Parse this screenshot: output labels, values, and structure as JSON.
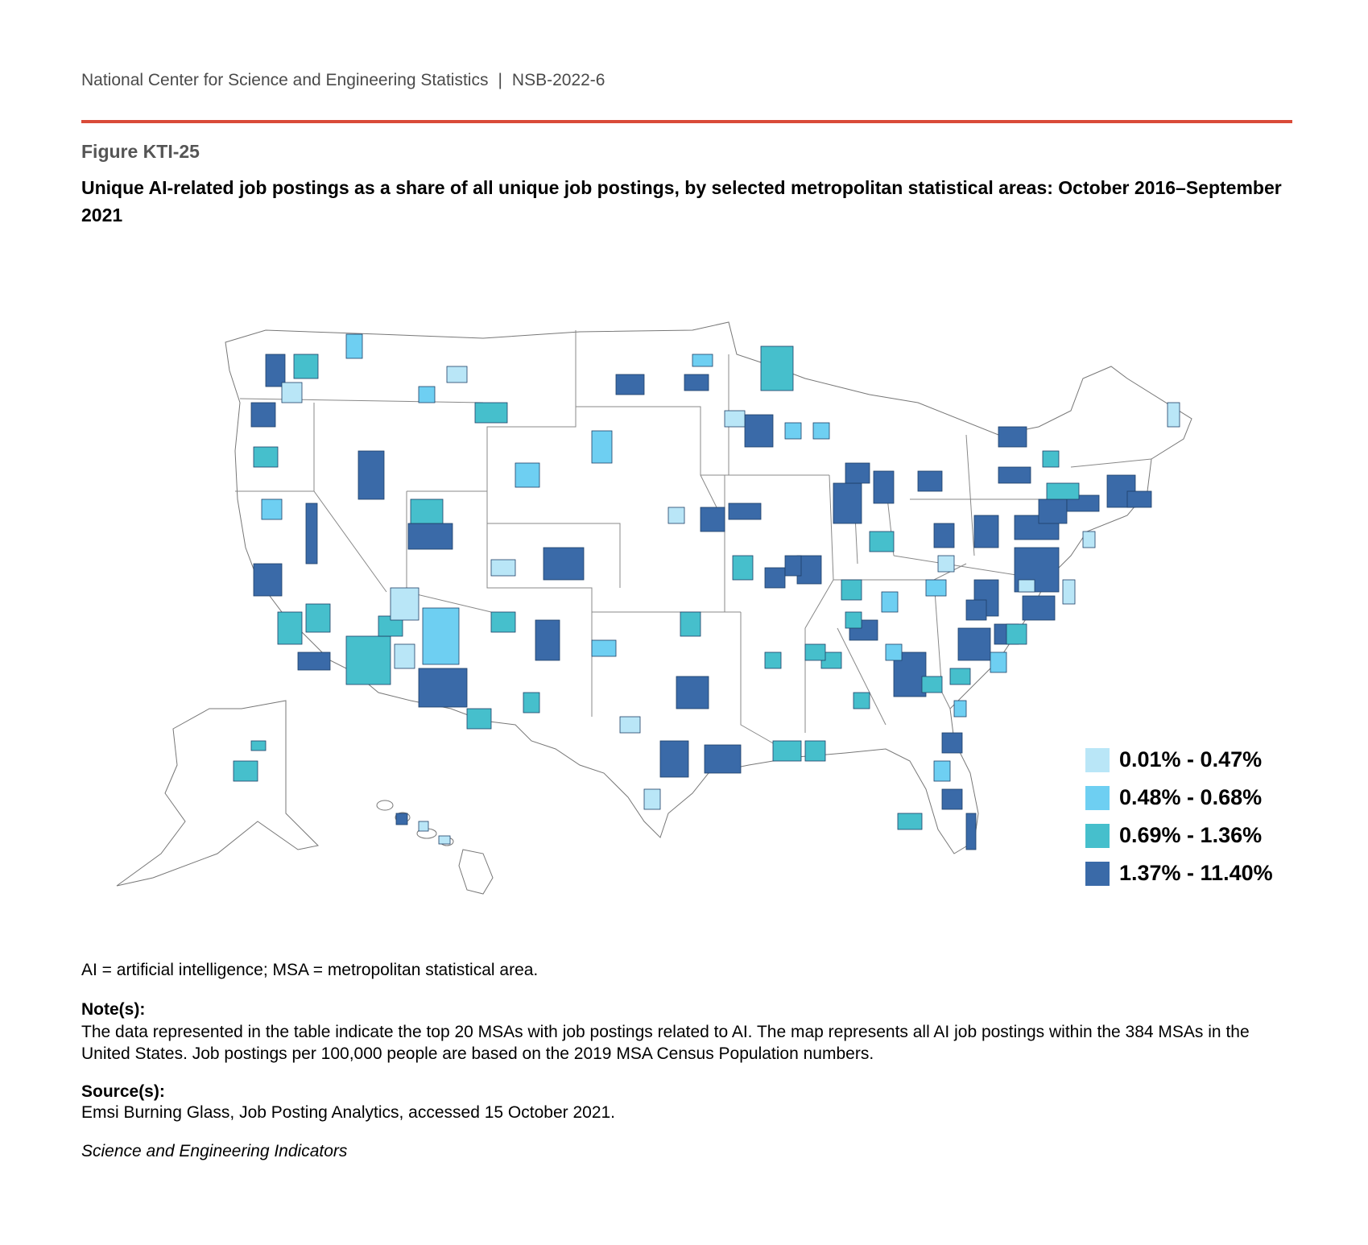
{
  "header": {
    "org": "National Center for Science and Engineering Statistics",
    "separator": "|",
    "report": "NSB-2022-6"
  },
  "figure": {
    "label": "Figure KTI-25",
    "title": "Unique AI-related job postings as a share of all unique job postings, by selected metropolitan statistical areas: October 2016–September 2021"
  },
  "legend": [
    {
      "label": "0.01% - 0.47%",
      "color": "#b9e6f7"
    },
    {
      "label": "0.48% - 0.68%",
      "color": "#6ecff2"
    },
    {
      "label": "0.69% - 1.36%",
      "color": "#46bfcc"
    },
    {
      "label": "1.37% - 11.40%",
      "color": "#3a6aa8"
    }
  ],
  "footer": {
    "abbrev": "AI = artificial intelligence; MSA = metropolitan statistical area.",
    "note_heading": "Note(s):",
    "note_text": "The data represented in the table indicate the top 20 MSAs with job postings related to AI. The map represents all AI job postings within the 384 MSAs in the United States. Job postings per 100,000 people are based on the 2019 MSA Census Population numbers.",
    "source_heading": "Source(s):",
    "source_text": "Emsi Burning Glass, Job Posting Analytics, accessed 15 October 2021.",
    "series": "Science and Engineering Indicators"
  }
}
